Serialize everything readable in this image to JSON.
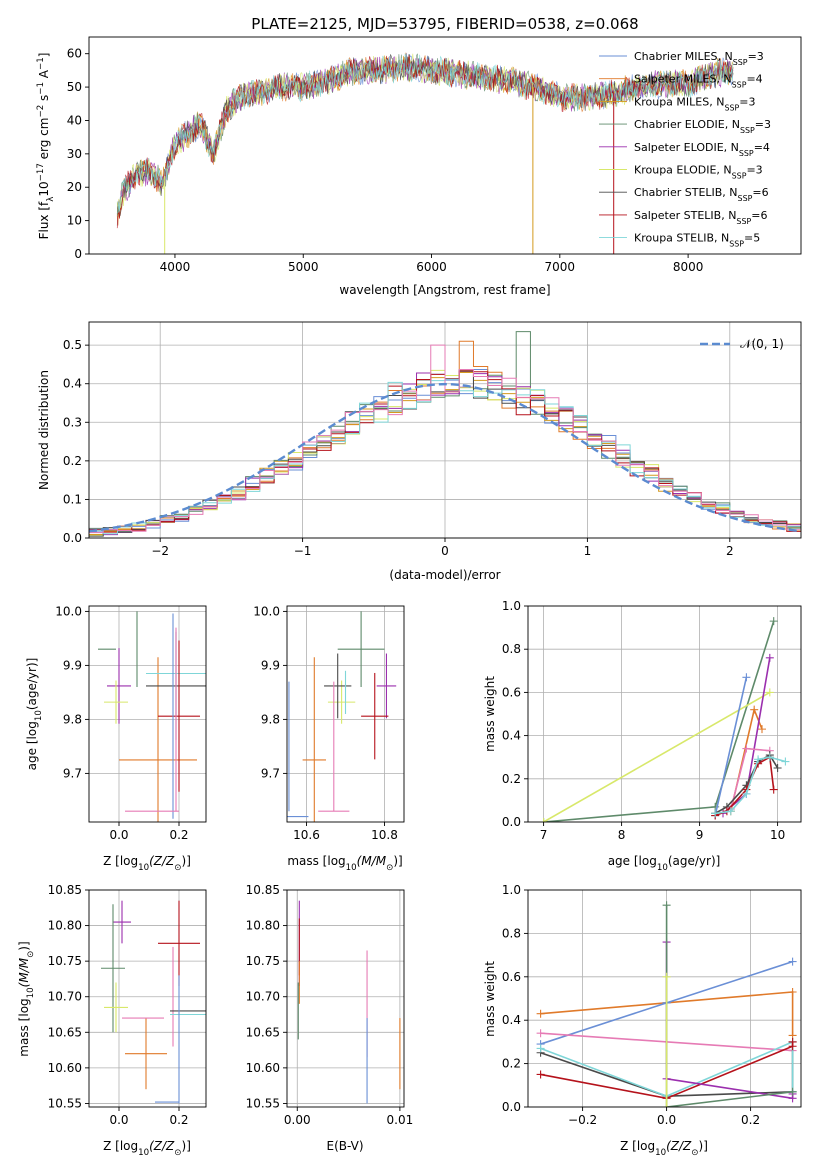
{
  "colors": {
    "Chabrier MILES": "#6a8fd6",
    "Salpeter MILES": "#e07a2a",
    "Kroupa MILES": "#d49a1f",
    "Chabrier ELODIE": "#5e8a6a",
    "Salpeter ELODIE": "#9b2fae",
    "Kroupa ELODIE": "#d8e86a",
    "Chabrier STELIB": "#4a4a4a",
    "Salpeter STELIB": "#b5121b",
    "Kroupa STELIB": "#7fd6d8",
    "pink": "#e67bb5",
    "normal": "#5b8bd0"
  },
  "chart_data": [
    {
      "id": "spectrum",
      "type": "line",
      "title": "PLATE=2125, MJD=53795, FIBERID=0538, z=0.068",
      "xlabel": "wavelength [Angstrom, rest frame]",
      "ylabel": "Flux [f",
      "ylabel_parts": [
        "Flux [f",
        "λ",
        "10",
        "−17",
        " erg cm",
        "−2",
        " s",
        "−1",
        " A",
        "−1",
        "]"
      ],
      "xlim": [
        3330,
        8880
      ],
      "ylim": [
        0,
        65
      ],
      "xticks": [
        4000,
        5000,
        6000,
        7000,
        8000
      ],
      "yticks": [
        0,
        10,
        20,
        30,
        40,
        50,
        60
      ],
      "spectrum_envelope": {
        "x": [
          3550,
          3600,
          3700,
          3800,
          3900,
          4000,
          4100,
          4200,
          4300,
          4400,
          4500,
          4600,
          4800,
          5000,
          5200,
          5400,
          5600,
          5800,
          6000,
          6200,
          6400,
          6600,
          6800,
          7000,
          7200,
          7400,
          7600,
          7800,
          8000,
          8200,
          8350
        ],
        "y": [
          12,
          19,
          24,
          25,
          21,
          33,
          36,
          39,
          30,
          43,
          47,
          48,
          50,
          50,
          52,
          55,
          55,
          56,
          55,
          54,
          53,
          52,
          50,
          47,
          47,
          48,
          50,
          51,
          51,
          54,
          55
        ]
      },
      "legend_position": "upper right",
      "legend": [
        {
          "label": "Chabrier MILES, N",
          "sub": "SSP",
          "tail": "=3"
        },
        {
          "label": "Salpeter MILES, N",
          "sub": "SSP",
          "tail": "=4"
        },
        {
          "label": "Kroupa MILES, N",
          "sub": "SSP",
          "tail": "=3"
        },
        {
          "label": "Chabrier ELODIE, N",
          "sub": "SSP",
          "tail": "=3"
        },
        {
          "label": "Salpeter ELODIE, N",
          "sub": "SSP",
          "tail": "=4"
        },
        {
          "label": "Kroupa ELODIE, N",
          "sub": "SSP",
          "tail": "=3"
        },
        {
          "label": "Chabrier STELIB, N",
          "sub": "SSP",
          "tail": "=6"
        },
        {
          "label": "Salpeter STELIB, N",
          "sub": "SSP",
          "tail": "=6"
        },
        {
          "label": "Kroupa STELIB, N",
          "sub": "SSP",
          "tail": "=5"
        }
      ],
      "dropouts": [
        3920,
        6790,
        7420
      ]
    },
    {
      "id": "residuals",
      "type": "bar",
      "xlabel": "(data-model)/error",
      "ylabel": "Normed distribution",
      "xlim": [
        -2.5,
        2.5
      ],
      "ylim": [
        0,
        0.56
      ],
      "xticks": [
        -2,
        -1,
        0,
        1,
        2
      ],
      "yticks": [
        0.0,
        0.1,
        0.2,
        0.3,
        0.4,
        0.5
      ],
      "legend_label": "𝒩(0, 1)",
      "legend_position": "upper right",
      "grid": true
    },
    {
      "id": "z_age",
      "type": "scatter",
      "xlabel": "Z [log",
      "xlabel_parts": [
        "Z [log",
        "10",
        "(Z/Z",
        "⊙",
        ")]"
      ],
      "ylabel_parts": [
        "age  [log",
        "10",
        "(age/yr)]"
      ],
      "xlim": [
        -0.1,
        0.29
      ],
      "ylim": [
        9.61,
        10.01
      ],
      "xticks": [
        0.0,
        0.2
      ],
      "yticks": [
        9.7,
        9.8,
        9.9,
        10.0
      ],
      "points": [
        {
          "c": "Chabrier ELODIE",
          "x": -0.04,
          "y": 9.93,
          "xe": 0.03,
          "ye": 0
        },
        {
          "c": "Chabrier ELODIE",
          "x": 0.06,
          "y": 9.93,
          "xe": 0,
          "ye": 0.07
        },
        {
          "c": "Salpeter ELODIE",
          "x": 0.0,
          "y": 9.862,
          "xe": 0.04,
          "ye": 0.07
        },
        {
          "c": "Kroupa ELODIE",
          "x": -0.01,
          "y": 9.832,
          "xe": 0.04,
          "ye": 0.04
        },
        {
          "c": "Salpeter MILES",
          "x": 0.13,
          "y": 9.725,
          "xe": 0.13,
          "ye": 0.19
        },
        {
          "c": "Chabrier STELIB",
          "x": 0.19,
          "y": 9.862,
          "xe": 0.1,
          "ye": 0.1
        },
        {
          "c": "Kroupa STELIB",
          "x": 0.19,
          "y": 9.885,
          "xe": 0.1,
          "ye": 0.08
        },
        {
          "c": "Salpeter STELIB",
          "x": 0.2,
          "y": 9.806,
          "xe": 0.07,
          "ye": 0.14
        },
        {
          "c": "Chabrier MILES",
          "x": 0.18,
          "y": 9.806,
          "xe": 0,
          "ye": 0.19
        },
        {
          "c": "pink",
          "x": 0.11,
          "y": 9.63,
          "xe": 0.09,
          "ye": 0
        },
        {
          "c": "pink",
          "x": 0.19,
          "y": 9.8,
          "xe": 0,
          "ye": 0.17
        }
      ]
    },
    {
      "id": "mass_age",
      "type": "scatter",
      "xlabel_parts": [
        "mass [log",
        "10",
        "(M/M",
        "⊙",
        ")]"
      ],
      "xlim": [
        10.55,
        10.85
      ],
      "ylim": [
        9.61,
        10.01
      ],
      "xticks": [
        10.6,
        10.8
      ],
      "yticks": [
        9.7,
        9.8,
        9.9,
        10.0
      ],
      "points": [
        {
          "c": "Chabrier ELODIE",
          "x": 10.74,
          "y": 9.93,
          "xe": 0.06,
          "ye": 0.07
        },
        {
          "c": "Salpeter ELODIE",
          "x": 10.805,
          "y": 9.862,
          "xe": 0.025,
          "ye": 0.06
        },
        {
          "c": "Kroupa ELODIE",
          "x": 10.69,
          "y": 9.832,
          "xe": 0.035,
          "ye": 0.04
        },
        {
          "c": "Salpeter MILES",
          "x": 10.62,
          "y": 9.725,
          "xe": 0.03,
          "ye": 0.19
        },
        {
          "c": "Chabrier STELIB",
          "x": 10.68,
          "y": 9.862,
          "xe": 0.035,
          "ye": 0.06
        },
        {
          "c": "Salpeter STELIB",
          "x": 10.775,
          "y": 9.806,
          "xe": 0.035,
          "ye": 0.08
        },
        {
          "c": "Chabrier MILES",
          "x": 10.555,
          "y": 9.62,
          "xe": 0.05,
          "ye": 0
        },
        {
          "c": "Chabrier MILES",
          "x": 10.555,
          "y": 9.75,
          "xe": 0,
          "ye": 0.12
        },
        {
          "c": "pink",
          "x": 10.67,
          "y": 9.63,
          "xe": 0.04,
          "ye": 0
        },
        {
          "c": "pink",
          "x": 10.67,
          "y": 9.75,
          "xe": 0,
          "ye": 0.12
        },
        {
          "c": "Kroupa STELIB",
          "x": 10.7,
          "y": 9.85,
          "xe": 0,
          "ye": 0.04
        }
      ]
    },
    {
      "id": "age_weight",
      "type": "line",
      "xlabel_parts": [
        "age  [log",
        "10",
        "(age/yr)]"
      ],
      "ylabel": "mass weight",
      "xlim": [
        6.8,
        10.3
      ],
      "ylim": [
        0,
        1.0
      ],
      "xticks": [
        7,
        8,
        9,
        10
      ],
      "yticks": [
        0.0,
        0.2,
        0.4,
        0.6,
        0.8,
        1.0
      ],
      "grid": true,
      "series": [
        {
          "c": "Chabrier ELODIE",
          "x": [
            7.0,
            9.2,
            9.95
          ],
          "y": [
            0.0,
            0.07,
            0.93
          ]
        },
        {
          "c": "Kroupa ELODIE",
          "x": [
            7.0,
            9.9
          ],
          "y": [
            0.0,
            0.6
          ]
        },
        {
          "c": "Chabrier MILES",
          "x": [
            9.2,
            9.6
          ],
          "y": [
            0.03,
            0.67
          ]
        },
        {
          "c": "Salpeter MILES",
          "x": [
            9.4,
            9.7,
            9.8
          ],
          "y": [
            0.05,
            0.52,
            0.43
          ]
        },
        {
          "c": "Salpeter ELODIE",
          "x": [
            9.3,
            9.6,
            9.9
          ],
          "y": [
            0.04,
            0.13,
            0.76
          ]
        },
        {
          "c": "pink",
          "x": [
            9.4,
            9.6,
            9.9
          ],
          "y": [
            0.06,
            0.34,
            0.33
          ]
        },
        {
          "c": "Chabrier STELIB",
          "x": [
            9.2,
            9.35,
            9.6,
            9.75,
            9.9,
            10.0
          ],
          "y": [
            0.04,
            0.07,
            0.17,
            0.28,
            0.31,
            0.25
          ]
        },
        {
          "c": "Salpeter STELIB",
          "x": [
            9.2,
            9.35,
            9.6,
            9.75,
            9.9,
            9.95
          ],
          "y": [
            0.03,
            0.05,
            0.15,
            0.27,
            0.3,
            0.15
          ]
        },
        {
          "c": "Kroupa STELIB",
          "x": [
            9.2,
            9.4,
            9.6,
            9.75,
            9.9,
            10.1
          ],
          "y": [
            0.04,
            0.05,
            0.13,
            0.29,
            0.3,
            0.28
          ]
        }
      ]
    },
    {
      "id": "z_mass",
      "type": "scatter",
      "xlabel_parts": [
        "Z [log",
        "10",
        "(Z/Z",
        "⊙",
        ")]"
      ],
      "ylabel_parts": [
        "mass [log",
        "10",
        "(M/M",
        "⊙",
        ")]"
      ],
      "xlim": [
        -0.1,
        0.29
      ],
      "ylim": [
        10.545,
        10.85
      ],
      "xticks": [
        0.0,
        0.2
      ],
      "yticks": [
        10.55,
        10.6,
        10.65,
        10.7,
        10.75,
        10.8,
        10.85
      ],
      "points": [
        {
          "c": "Salpeter ELODIE",
          "x": 0.01,
          "y": 10.805,
          "xe": 0.03,
          "ye": 0.03
        },
        {
          "c": "Chabrier ELODIE",
          "x": -0.02,
          "y": 10.74,
          "xe": 0.04,
          "ye": 0.09
        },
        {
          "c": "Kroupa ELODIE",
          "x": -0.01,
          "y": 10.685,
          "xe": 0.04,
          "ye": 0.035
        },
        {
          "c": "Salpeter STELIB",
          "x": 0.2,
          "y": 10.775,
          "xe": 0.07,
          "ye": 0.06
        },
        {
          "c": "Salpeter MILES",
          "x": 0.09,
          "y": 10.62,
          "xe": 0.07,
          "ye": 0.05
        },
        {
          "c": "pink",
          "x": 0.08,
          "y": 10.67,
          "xe": 0.07,
          "ye": 0
        },
        {
          "c": "pink",
          "x": 0.18,
          "y": 10.7,
          "xe": 0,
          "ye": 0.07
        },
        {
          "c": "Chabrier STELIB",
          "x": 0.23,
          "y": 10.68,
          "xe": 0.06,
          "ye": 0
        },
        {
          "c": "Kroupa STELIB",
          "x": 0.23,
          "y": 10.675,
          "xe": 0.06,
          "ye": 0
        },
        {
          "c": "Chabrier MILES",
          "x": 0.16,
          "y": 10.552,
          "xe": 0.04,
          "ye": 0
        },
        {
          "c": "Chabrier MILES",
          "x": 0.2,
          "y": 10.64,
          "xe": 0,
          "ye": 0.09
        }
      ]
    },
    {
      "id": "ebv_mass",
      "type": "scatter",
      "xlabel": "E(B-V)",
      "xlim": [
        -0.001,
        0.0104
      ],
      "ylim": [
        10.545,
        10.85
      ],
      "xticks": [
        0.0,
        0.01
      ],
      "yticks": [
        10.55,
        10.6,
        10.65,
        10.7,
        10.75,
        10.8,
        10.85
      ],
      "points": [
        {
          "c": "Salpeter ELODIE",
          "x": 0.0002,
          "y": 10.775,
          "xe": 0,
          "ye": 0.06
        },
        {
          "c": "Salpeter STELIB",
          "x": 0.0002,
          "y": 10.77,
          "xe": 0,
          "ye": 0.04
        },
        {
          "c": "Salpeter MILES",
          "x": 0.0002,
          "y": 10.72,
          "xe": 0,
          "ye": 0.03
        },
        {
          "c": "Chabrier ELODIE",
          "x": 0.0001,
          "y": 10.68,
          "xe": 0,
          "ye": 0.04
        },
        {
          "c": "pink",
          "x": 0.0068,
          "y": 10.69,
          "xe": 0,
          "ye": 0.075
        },
        {
          "c": "Chabrier MILES",
          "x": 0.0068,
          "y": 10.61,
          "xe": 0,
          "ye": 0.06
        },
        {
          "c": "Salpeter MILES",
          "x": 0.01,
          "y": 10.62,
          "xe": 0,
          "ye": 0.05
        }
      ]
    },
    {
      "id": "z_weight",
      "type": "line",
      "xlabel_parts": [
        "Z [log",
        "10",
        "(Z/Z",
        "⊙",
        ")]"
      ],
      "ylabel": "mass weight",
      "xlim": [
        -0.33,
        0.32
      ],
      "ylim": [
        0,
        1.0
      ],
      "xticks": [
        -0.2,
        0.0,
        0.2
      ],
      "yticks": [
        0.0,
        0.2,
        0.4,
        0.6,
        0.8,
        1.0
      ],
      "grid": true,
      "series": [
        {
          "c": "Salpeter MILES",
          "x": [
            -0.3,
            0.0,
            0.3,
            0.3
          ],
          "y": [
            0.43,
            0.48,
            0.53,
            0.33
          ]
        },
        {
          "c": "Chabrier MILES",
          "x": [
            -0.3,
            0.0,
            0.3
          ],
          "y": [
            0.29,
            0.48,
            0.67
          ]
        },
        {
          "c": "pink",
          "x": [
            -0.3,
            0.3
          ],
          "y": [
            0.34,
            0.26
          ]
        },
        {
          "c": "Chabrier STELIB",
          "x": [
            -0.3,
            0.0,
            0.3,
            0.3
          ],
          "y": [
            0.25,
            0.05,
            0.07,
            0.3
          ]
        },
        {
          "c": "Kroupa STELIB",
          "x": [
            -0.3,
            0.0,
            0.3,
            0.3
          ],
          "y": [
            0.27,
            0.05,
            0.3,
            0.07
          ]
        },
        {
          "c": "Salpeter STELIB",
          "x": [
            -0.3,
            0.0,
            0.3,
            0.3
          ],
          "y": [
            0.15,
            0.04,
            0.28,
            0.3
          ]
        },
        {
          "c": "Salpeter ELODIE",
          "x": [
            0.0,
            0.0,
            0.3,
            0.3
          ],
          "y": [
            0.76,
            0.13,
            0.04,
            0.06
          ]
        },
        {
          "c": "Chabrier ELODIE",
          "x": [
            0.0,
            0.0,
            0.3
          ],
          "y": [
            0.93,
            0.0,
            0.07
          ]
        },
        {
          "c": "Kroupa ELODIE",
          "x": [
            0.0,
            0.0
          ],
          "y": [
            0.6,
            0.0
          ]
        }
      ]
    }
  ]
}
